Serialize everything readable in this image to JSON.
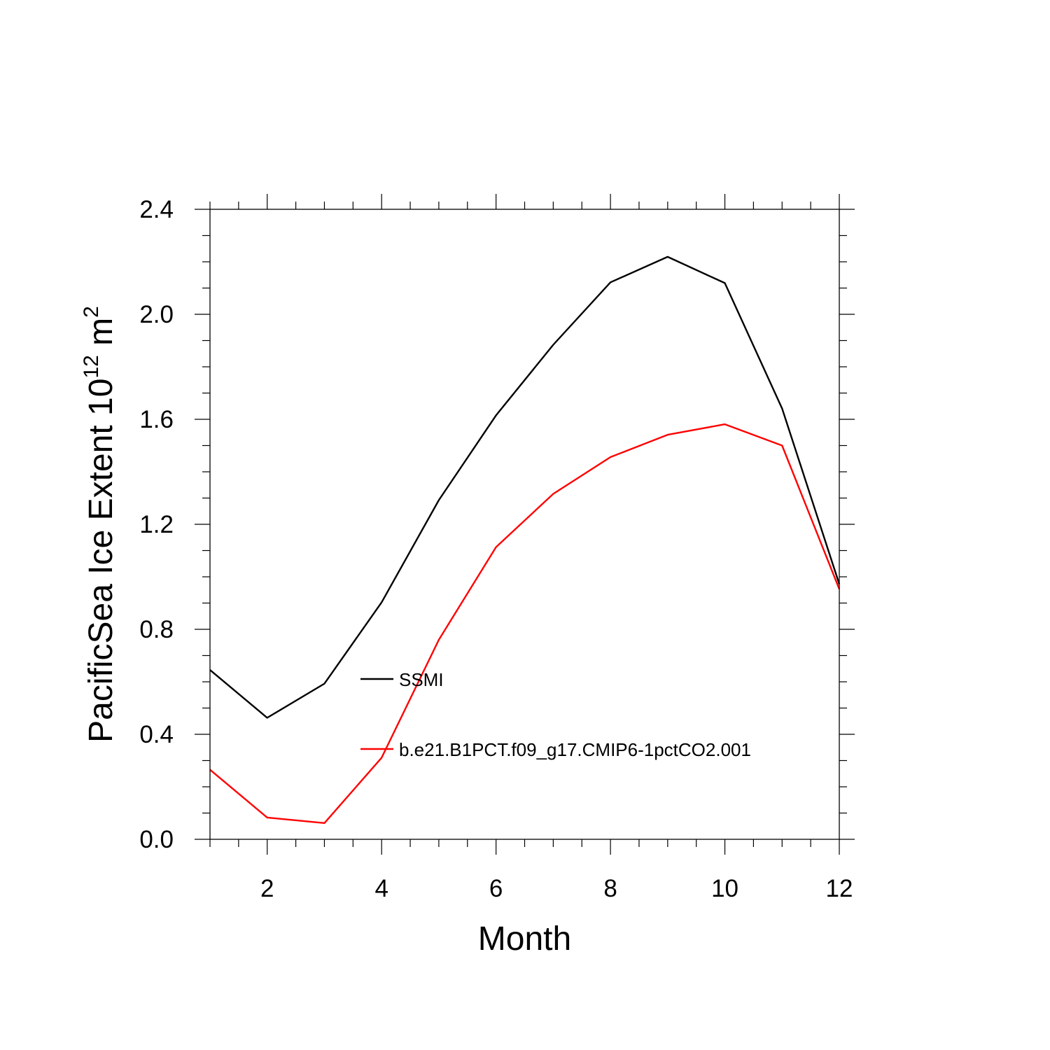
{
  "chart_data": {
    "type": "line",
    "xlabel": "Month",
    "ylabel": {
      "prefix": "PacificSea Ice Extent 10",
      "exp1": "12",
      "mid": " m",
      "exp2": "2"
    },
    "xlim": [
      1,
      12
    ],
    "ylim": [
      0,
      2.4
    ],
    "xticks": [
      2,
      4,
      6,
      8,
      10,
      12
    ],
    "xtick_labels": [
      "2",
      "4",
      "6",
      "8",
      "10",
      "12"
    ],
    "yticks": [
      0,
      0.4,
      0.8,
      1.2,
      1.6,
      2.0,
      2.4
    ],
    "ytick_labels": [
      "0.0",
      "0.4",
      "0.8",
      "1.2",
      "1.6",
      "2.0",
      "2.4"
    ],
    "x": [
      1,
      2,
      3,
      4,
      5,
      6,
      7,
      8,
      9,
      10,
      11,
      12
    ],
    "series": [
      {
        "name": "SSMI",
        "color": "#000000",
        "values": [
          0.645,
          0.463,
          0.593,
          0.903,
          1.292,
          1.615,
          1.884,
          2.122,
          2.219,
          2.119,
          1.641,
          0.972
        ]
      },
      {
        "name": "b.e21.B1PCT.f09_g17.CMIP6-1pctCO2.001",
        "color": "#ff0000",
        "values": [
          0.265,
          0.083,
          0.062,
          0.311,
          0.76,
          1.113,
          1.316,
          1.456,
          1.541,
          1.581,
          1.5,
          0.953
        ]
      }
    ],
    "grid": false,
    "legend_position": "inside-center"
  }
}
